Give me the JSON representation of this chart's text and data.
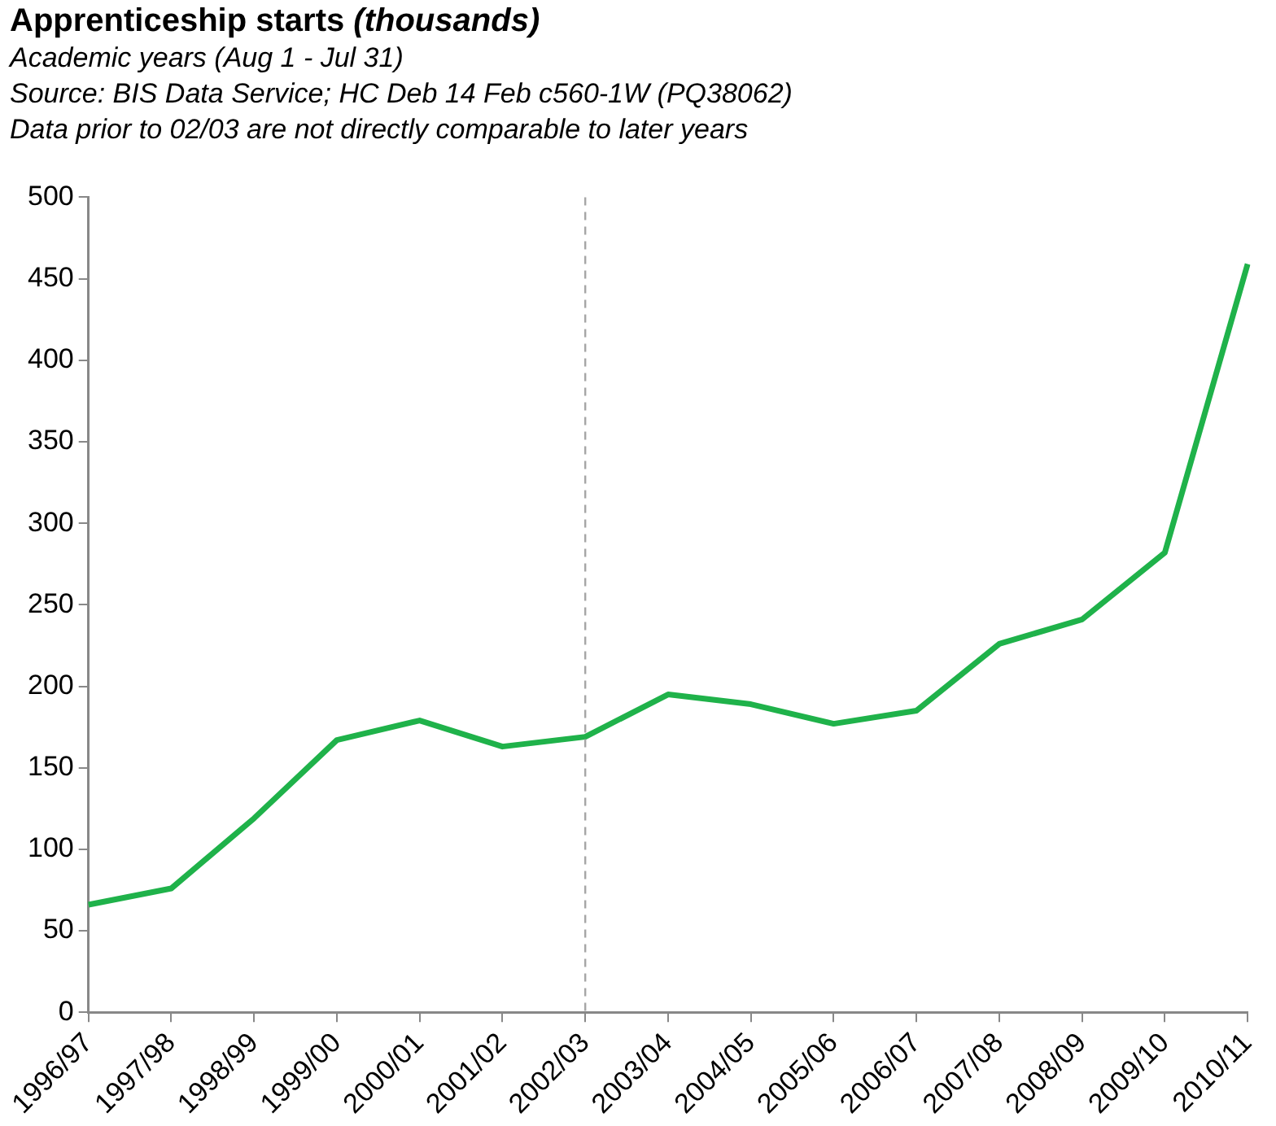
{
  "chart_data": {
    "type": "line",
    "title": "Apprenticeship starts",
    "subtitle": "(thousands)",
    "annotations": [
      "Academic years (Aug 1 - Jul 31)",
      "Source: BIS Data Service; HC Deb 14 Feb c560-1W (PQ38062)",
      "Data prior to 02/03 are not directly comparable to later years"
    ],
    "categories": [
      "1996/97",
      "1997/98",
      "1998/99",
      "1999/00",
      "2000/01",
      "2001/02",
      "2002/03",
      "2003/04",
      "2004/05",
      "2005/06",
      "2006/07",
      "2007/08",
      "2008/09",
      "2009/10",
      "2010/11"
    ],
    "series": [
      {
        "color": "#1fb24a",
        "values": [
          66,
          76,
          119,
          167,
          179,
          163,
          169,
          195,
          189,
          177,
          185,
          226,
          241,
          282,
          459
        ]
      }
    ],
    "ylim": [
      0,
      500
    ],
    "yticks": [
      0,
      50,
      100,
      150,
      200,
      250,
      300,
      350,
      400,
      450,
      500
    ],
    "grid": false,
    "legend": false,
    "marker": "none",
    "line_style": "solid",
    "ref_lines": [
      {
        "axis": "x",
        "value": "2002/03",
        "color": "#a6a6a6",
        "line_style": "dashed"
      }
    ]
  }
}
